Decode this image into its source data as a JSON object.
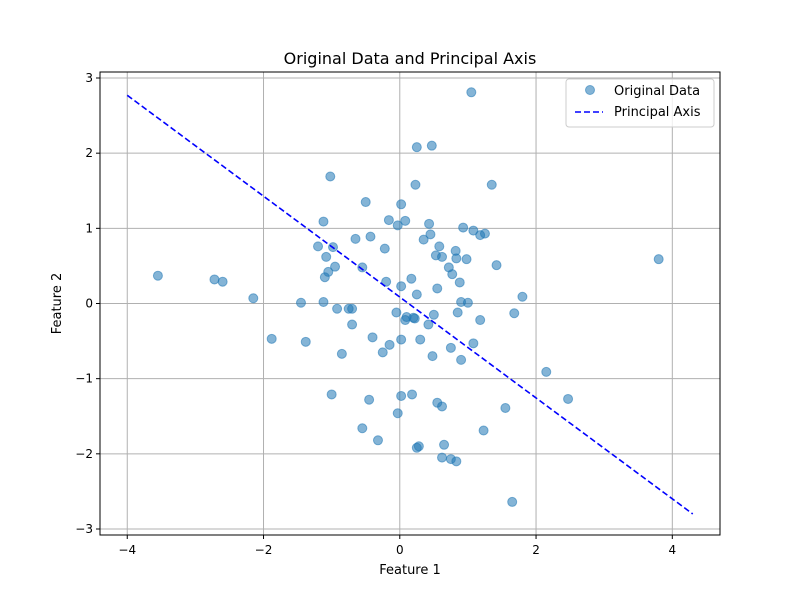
{
  "chart_data": {
    "type": "scatter",
    "title": "Original Data and Principal Axis",
    "xlabel": "Feature 1",
    "ylabel": "Feature 2",
    "xlim": [
      -4.4,
      4.7
    ],
    "ylim": [
      -3.08,
      3.08
    ],
    "x_ticks": [
      -4,
      -2,
      0,
      2,
      4
    ],
    "y_ticks": [
      -3,
      -2,
      -1,
      0,
      1,
      2,
      3
    ],
    "x_tick_labels": [
      "−4",
      "−2",
      "0",
      "2",
      "4"
    ],
    "y_tick_labels": [
      "−3",
      "−2",
      "−1",
      "0",
      "1",
      "2",
      "3"
    ],
    "grid": true,
    "legend_position": "top-right",
    "colors": {
      "points": "#1f77b4",
      "line": "#0000ff",
      "grid": "#b0b0b0",
      "axes": "#000000"
    },
    "series": [
      {
        "name": "Original Data",
        "kind": "scatter",
        "points": [
          [
            1.05,
            2.81
          ],
          [
            0.25,
            2.08
          ],
          [
            0.47,
            2.1
          ],
          [
            1.35,
            1.58
          ],
          [
            0.23,
            1.58
          ],
          [
            -1.02,
            1.69
          ],
          [
            -0.5,
            1.35
          ],
          [
            0.02,
            1.32
          ],
          [
            -1.12,
            1.09
          ],
          [
            -0.16,
            1.11
          ],
          [
            0.08,
            1.1
          ],
          [
            0.43,
            1.06
          ],
          [
            -0.03,
            1.04
          ],
          [
            0.93,
            1.01
          ],
          [
            1.08,
            0.97
          ],
          [
            1.25,
            0.93
          ],
          [
            1.18,
            0.91
          ],
          [
            0.45,
            0.92
          ],
          [
            -0.43,
            0.89
          ],
          [
            0.35,
            0.85
          ],
          [
            -0.65,
            0.86
          ],
          [
            0.58,
            0.76
          ],
          [
            -1.2,
            0.76
          ],
          [
            -0.98,
            0.75
          ],
          [
            -0.22,
            0.73
          ],
          [
            0.82,
            0.7
          ],
          [
            0.62,
            0.62
          ],
          [
            0.53,
            0.64
          ],
          [
            -1.08,
            0.62
          ],
          [
            0.83,
            0.6
          ],
          [
            0.98,
            0.59
          ],
          [
            1.42,
            0.51
          ],
          [
            -0.95,
            0.49
          ],
          [
            -0.55,
            0.48
          ],
          [
            0.72,
            0.48
          ],
          [
            -1.05,
            0.42
          ],
          [
            0.77,
            0.39
          ],
          [
            -1.1,
            0.35
          ],
          [
            0.17,
            0.33
          ],
          [
            -0.2,
            0.29
          ],
          [
            0.88,
            0.28
          ],
          [
            3.8,
            0.59
          ],
          [
            -3.55,
            0.37
          ],
          [
            -2.72,
            0.32
          ],
          [
            -2.6,
            0.29
          ],
          [
            0.02,
            0.23
          ],
          [
            0.55,
            0.2
          ],
          [
            0.25,
            0.12
          ],
          [
            1.8,
            0.09
          ],
          [
            -2.15,
            0.07
          ],
          [
            -1.45,
            0.01
          ],
          [
            -1.12,
            0.02
          ],
          [
            0.9,
            0.02
          ],
          [
            1.0,
            0.01
          ],
          [
            -0.92,
            -0.07
          ],
          [
            -0.7,
            -0.07
          ],
          [
            -0.75,
            -0.07
          ],
          [
            -0.05,
            -0.12
          ],
          [
            0.85,
            -0.12
          ],
          [
            1.68,
            -0.13
          ],
          [
            0.5,
            -0.15
          ],
          [
            0.1,
            -0.18
          ],
          [
            0.2,
            -0.19
          ],
          [
            0.22,
            -0.2
          ],
          [
            0.08,
            -0.22
          ],
          [
            1.18,
            -0.22
          ],
          [
            0.42,
            -0.28
          ],
          [
            -0.7,
            -0.28
          ],
          [
            -0.4,
            -0.45
          ],
          [
            -1.88,
            -0.47
          ],
          [
            0.02,
            -0.48
          ],
          [
            0.3,
            -0.48
          ],
          [
            -1.38,
            -0.51
          ],
          [
            -0.15,
            -0.55
          ],
          [
            1.08,
            -0.53
          ],
          [
            0.75,
            -0.59
          ],
          [
            -0.25,
            -0.65
          ],
          [
            -0.85,
            -0.67
          ],
          [
            0.48,
            -0.7
          ],
          [
            0.9,
            -0.75
          ],
          [
            2.15,
            -0.91
          ],
          [
            -1.0,
            -1.21
          ],
          [
            0.02,
            -1.23
          ],
          [
            0.18,
            -1.21
          ],
          [
            -0.45,
            -1.28
          ],
          [
            2.47,
            -1.27
          ],
          [
            0.55,
            -1.32
          ],
          [
            0.62,
            -1.37
          ],
          [
            1.55,
            -1.39
          ],
          [
            -0.03,
            -1.46
          ],
          [
            -0.55,
            -1.66
          ],
          [
            1.23,
            -1.69
          ],
          [
            -0.32,
            -1.82
          ],
          [
            0.28,
            -1.9
          ],
          [
            0.25,
            -1.92
          ],
          [
            0.65,
            -1.88
          ],
          [
            0.62,
            -2.05
          ],
          [
            0.75,
            -2.07
          ],
          [
            0.83,
            -2.1
          ],
          [
            1.65,
            -2.64
          ]
        ]
      },
      {
        "name": "Principal Axis",
        "kind": "line",
        "style": "dashed",
        "points": [
          [
            -4.0,
            2.77
          ],
          [
            4.3,
            -2.8
          ]
        ]
      }
    ]
  }
}
